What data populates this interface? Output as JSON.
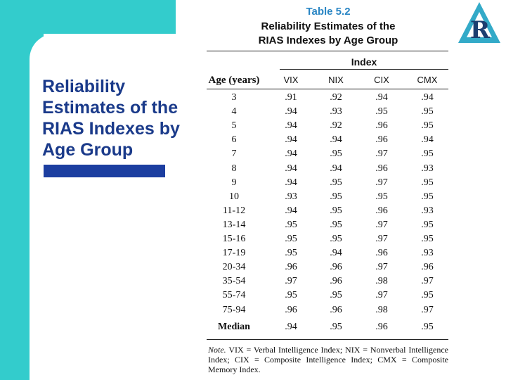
{
  "slide": {
    "title": "Reliability Estimates of the RIAS Indexes by Age Group"
  },
  "logo": {
    "letter": "R"
  },
  "table": {
    "label": "Table 5.2",
    "title_line1": "Reliability Estimates of the",
    "title_line2": "RIAS Indexes by Age Group",
    "index_header": "Index",
    "columns": [
      "Age (years)",
      "VIX",
      "NIX",
      "CIX",
      "CMX"
    ],
    "rows": [
      [
        "3",
        ".91",
        ".92",
        ".94",
        ".94"
      ],
      [
        "4",
        ".94",
        ".93",
        ".95",
        ".95"
      ],
      [
        "5",
        ".94",
        ".92",
        ".96",
        ".95"
      ],
      [
        "6",
        ".94",
        ".94",
        ".96",
        ".94"
      ],
      [
        "7",
        ".94",
        ".95",
        ".97",
        ".95"
      ],
      [
        "8",
        ".94",
        ".94",
        ".96",
        ".93"
      ],
      [
        "9",
        ".94",
        ".95",
        ".97",
        ".95"
      ],
      [
        "10",
        ".93",
        ".95",
        ".95",
        ".95"
      ],
      [
        "11-12",
        ".94",
        ".95",
        ".96",
        ".93"
      ],
      [
        "13-14",
        ".95",
        ".95",
        ".97",
        ".95"
      ],
      [
        "15-16",
        ".95",
        ".95",
        ".97",
        ".95"
      ],
      [
        "17-19",
        ".95",
        ".94",
        ".96",
        ".93"
      ],
      [
        "20-34",
        ".96",
        ".96",
        ".97",
        ".96"
      ],
      [
        "35-54",
        ".97",
        ".96",
        ".98",
        ".97"
      ],
      [
        "55-74",
        ".95",
        ".95",
        ".97",
        ".95"
      ],
      [
        "75-94",
        ".96",
        ".96",
        ".98",
        ".97"
      ]
    ],
    "median": [
      "Median",
      ".94",
      ".95",
      ".96",
      ".95"
    ],
    "note_label": "Note.",
    "note_text": "VIX = Verbal Intelligence Index; NIX = Nonverbal Intelligence Index; CIX = Composite Intelligence Index; CMX = Composite Memory Index."
  }
}
